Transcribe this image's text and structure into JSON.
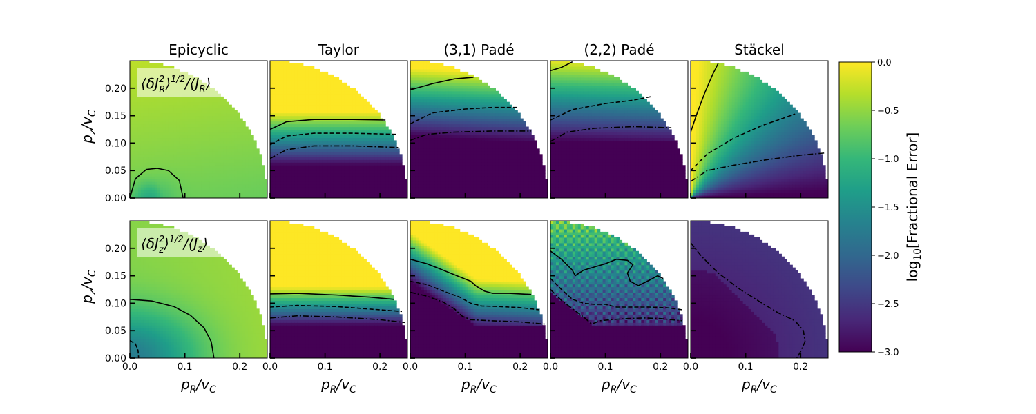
{
  "chart_data": {
    "type": "heatmap",
    "columns": [
      "Epicyclic",
      "Taylor",
      "(3,1) Padé",
      "(2,2) Padé",
      "Stäckel"
    ],
    "rows": [
      {
        "label_tex": "⟨δJ_R²⟩^{1/2}/⟨J_R⟩",
        "label_main": "⟨δJ",
        "label_sub": "R",
        "label_sup": "2",
        "label_exp": "1/2",
        "label_tail": "/⟨J",
        "label_tail_sub": "R",
        "label_close": "⟩"
      },
      {
        "label_tex": "⟨δJ_z²⟩^{1/2}/⟨J_z⟩",
        "label_main": "⟨δJ",
        "label_sub": "z",
        "label_sup": "2",
        "label_exp": "1/2",
        "label_tail": "/⟨J",
        "label_tail_sub": "z",
        "label_close": "⟩"
      }
    ],
    "xlabel": "p_R/v_C",
    "ylabel": "p_z/v_C",
    "xlabel_main": "p",
    "xlabel_sub": "R",
    "xlabel_tail": "/v",
    "xlabel_tail_sub": "C",
    "ylabel_main": "p",
    "ylabel_sub": "z",
    "ylabel_tail": "/v",
    "ylabel_tail_sub": "C",
    "xlim": [
      0.0,
      0.25
    ],
    "ylim": [
      0.0,
      0.25
    ],
    "xticks": [
      0.0,
      0.1,
      0.2
    ],
    "yticks": [
      0.0,
      0.05,
      0.1,
      0.15,
      0.2
    ],
    "xtick_labels": [
      "0.0",
      "0.1",
      "0.2"
    ],
    "ytick_labels": [
      "0.00",
      "0.05",
      "0.10",
      "0.15",
      "0.20"
    ],
    "region_radius": 0.25,
    "colorbar": {
      "label": "log10[Fractional Error]",
      "label_pre": "log",
      "label_sub": "10",
      "label_post": "[Fractional Error]",
      "range": [
        -3.0,
        0.0
      ],
      "ticks": [
        0.0,
        -0.5,
        -1.0,
        -1.5,
        -2.0,
        -2.5,
        -3.0
      ],
      "tick_labels": [
        "0.0",
        "−0.5",
        "−1.0",
        "−1.5",
        "−2.0",
        "−2.5",
        "−3.0"
      ],
      "colormap": "viridis"
    },
    "colors": {
      "viridis": [
        "#440154",
        "#482878",
        "#3e4989",
        "#31688e",
        "#26828e",
        "#1f9e89",
        "#35b779",
        "#6ece58",
        "#b5de2b",
        "#fde725"
      ]
    },
    "panels": [
      {
        "row": 0,
        "col": 0,
        "model": "epicyclic_R",
        "contours": [
          {
            "style": "solid",
            "points": [
              [
                0.0,
                0.0
              ],
              [
                0.01,
                0.035
              ],
              [
                0.03,
                0.052
              ],
              [
                0.05,
                0.054
              ],
              [
                0.07,
                0.05
              ],
              [
                0.09,
                0.032
              ],
              [
                0.097,
                0.0
              ]
            ]
          }
        ]
      },
      {
        "row": 0,
        "col": 1,
        "model": "taylor",
        "contours": [
          {
            "style": "solid",
            "points": [
              [
                0.0,
                0.125
              ],
              [
                0.03,
                0.139
              ],
              [
                0.08,
                0.143
              ],
              [
                0.15,
                0.143
              ],
              [
                0.21,
                0.142
              ]
            ]
          },
          {
            "style": "dashed",
            "points": [
              [
                0.0,
                0.097
              ],
              [
                0.03,
                0.113
              ],
              [
                0.08,
                0.118
              ],
              [
                0.15,
                0.118
              ],
              [
                0.23,
                0.116
              ]
            ]
          },
          {
            "style": "dashdot",
            "points": [
              [
                0.0,
                0.072
              ],
              [
                0.03,
                0.088
              ],
              [
                0.08,
                0.095
              ],
              [
                0.15,
                0.095
              ],
              [
                0.235,
                0.092
              ]
            ]
          }
        ]
      },
      {
        "row": 0,
        "col": 2,
        "model": "pade31",
        "contours": [
          {
            "style": "solid",
            "points": [
              [
                0.0,
                0.197
              ],
              [
                0.04,
                0.208
              ],
              [
                0.08,
                0.217
              ],
              [
                0.115,
                0.22
              ]
            ]
          },
          {
            "style": "dashed",
            "points": [
              [
                0.0,
                0.135
              ],
              [
                0.04,
                0.155
              ],
              [
                0.1,
                0.162
              ],
              [
                0.15,
                0.165
              ],
              [
                0.195,
                0.165
              ]
            ]
          },
          {
            "style": "dashdot",
            "points": [
              [
                0.0,
                0.105
              ],
              [
                0.03,
                0.116
              ],
              [
                0.08,
                0.12
              ],
              [
                0.15,
                0.122
              ],
              [
                0.22,
                0.122
              ]
            ]
          }
        ]
      },
      {
        "row": 0,
        "col": 3,
        "model": "pade22",
        "contours": [
          {
            "style": "solid",
            "points": [
              [
                0.0,
                0.232
              ],
              [
                0.02,
                0.238
              ],
              [
                0.04,
                0.248
              ]
            ]
          },
          {
            "style": "dashed",
            "points": [
              [
                0.0,
                0.142
              ],
              [
                0.04,
                0.161
              ],
              [
                0.1,
                0.172
              ],
              [
                0.15,
                0.178
              ],
              [
                0.185,
                0.185
              ]
            ]
          },
          {
            "style": "dashdot",
            "points": [
              [
                0.0,
                0.103
              ],
              [
                0.03,
                0.12
              ],
              [
                0.08,
                0.127
              ],
              [
                0.15,
                0.13
              ],
              [
                0.22,
                0.128
              ]
            ]
          }
        ]
      },
      {
        "row": 0,
        "col": 4,
        "model": "staeckel_R",
        "contours": [
          {
            "style": "solid",
            "points": [
              [
                0.0,
                0.12
              ],
              [
                0.01,
                0.15
              ],
              [
                0.025,
                0.19
              ],
              [
                0.04,
                0.225
              ],
              [
                0.05,
                0.245
              ]
            ]
          },
          {
            "style": "dashed",
            "points": [
              [
                0.0,
                0.05
              ],
              [
                0.03,
                0.08
              ],
              [
                0.08,
                0.11
              ],
              [
                0.13,
                0.132
              ],
              [
                0.19,
                0.153
              ]
            ]
          },
          {
            "style": "dashdot",
            "points": [
              [
                0.0,
                0.03
              ],
              [
                0.03,
                0.05
              ],
              [
                0.08,
                0.06
              ],
              [
                0.14,
                0.07
              ],
              [
                0.2,
                0.078
              ],
              [
                0.245,
                0.082
              ]
            ]
          }
        ]
      },
      {
        "row": 1,
        "col": 0,
        "model": "epicyclic_z",
        "contours": [
          {
            "style": "solid",
            "points": [
              [
                0.0,
                0.107
              ],
              [
                0.04,
                0.104
              ],
              [
                0.08,
                0.094
              ],
              [
                0.11,
                0.078
              ],
              [
                0.135,
                0.055
              ],
              [
                0.148,
                0.03
              ],
              [
                0.153,
                0.0
              ]
            ]
          },
          {
            "style": "dashed",
            "points": [
              [
                0.0,
                0.032
              ],
              [
                0.01,
                0.026
              ],
              [
                0.015,
                0.014
              ],
              [
                0.016,
                0.0
              ]
            ]
          }
        ]
      },
      {
        "row": 1,
        "col": 1,
        "model": "taylor",
        "contours": [
          {
            "style": "solid",
            "points": [
              [
                0.0,
                0.117
              ],
              [
                0.05,
                0.118
              ],
              [
                0.12,
                0.115
              ],
              [
                0.18,
                0.111
              ],
              [
                0.225,
                0.107
              ]
            ]
          },
          {
            "style": "dashed",
            "points": [
              [
                0.0,
                0.093
              ],
              [
                0.05,
                0.096
              ],
              [
                0.12,
                0.094
              ],
              [
                0.2,
                0.088
              ],
              [
                0.24,
                0.085
              ]
            ]
          },
          {
            "style": "dashdot",
            "points": [
              [
                0.0,
                0.073
              ],
              [
                0.05,
                0.077
              ],
              [
                0.12,
                0.075
              ],
              [
                0.2,
                0.07
              ],
              [
                0.245,
                0.065
              ]
            ]
          }
        ]
      },
      {
        "row": 1,
        "col": 2,
        "model": "pade31",
        "contours": [
          {
            "style": "solid",
            "points": [
              [
                0.0,
                0.18
              ],
              [
                0.03,
                0.172
              ],
              [
                0.06,
                0.16
              ],
              [
                0.09,
                0.148
              ],
              [
                0.11,
                0.14
              ],
              [
                0.12,
                0.131
              ],
              [
                0.135,
                0.122
              ],
              [
                0.15,
                0.118
              ],
              [
                0.18,
                0.118
              ],
              [
                0.22,
                0.116
              ]
            ]
          },
          {
            "style": "dashed",
            "points": [
              [
                0.0,
                0.14
              ],
              [
                0.03,
                0.134
              ],
              [
                0.06,
                0.122
              ],
              [
                0.09,
                0.111
              ],
              [
                0.11,
                0.1
              ],
              [
                0.13,
                0.095
              ],
              [
                0.16,
                0.094
              ],
              [
                0.2,
                0.092
              ],
              [
                0.235,
                0.088
              ]
            ]
          },
          {
            "style": "dashdot",
            "points": [
              [
                0.0,
                0.12
              ],
              [
                0.03,
                0.113
              ],
              [
                0.06,
                0.102
              ],
              [
                0.08,
                0.09
              ],
              [
                0.095,
                0.076
              ],
              [
                0.11,
                0.07
              ],
              [
                0.15,
                0.068
              ],
              [
                0.2,
                0.066
              ],
              [
                0.245,
                0.062
              ]
            ]
          }
        ]
      },
      {
        "row": 1,
        "col": 3,
        "model": "pade22",
        "contours": [
          {
            "style": "solid",
            "points": [
              [
                0.0,
                0.195
              ],
              [
                0.02,
                0.18
              ],
              [
                0.04,
                0.16
              ],
              [
                0.045,
                0.15
              ],
              [
                0.06,
                0.16
              ],
              [
                0.08,
                0.166
              ],
              [
                0.1,
                0.172
              ],
              [
                0.12,
                0.18
              ],
              [
                0.14,
                0.178
              ],
              [
                0.15,
                0.17
              ],
              [
                0.14,
                0.155
              ],
              [
                0.145,
                0.14
              ],
              [
                0.16,
                0.132
              ],
              [
                0.18,
                0.142
              ],
              [
                0.195,
                0.15
              ],
              [
                0.205,
                0.145
              ]
            ]
          },
          {
            "style": "dashed",
            "points": [
              [
                0.0,
                0.145
              ],
              [
                0.02,
                0.125
              ],
              [
                0.04,
                0.107
              ],
              [
                0.06,
                0.1
              ],
              [
                0.08,
                0.098
              ],
              [
                0.1,
                0.098
              ],
              [
                0.12,
                0.093
              ],
              [
                0.15,
                0.093
              ],
              [
                0.18,
                0.093
              ],
              [
                0.21,
                0.092
              ],
              [
                0.24,
                0.088
              ]
            ]
          },
          {
            "style": "dashdot",
            "points": [
              [
                0.0,
                0.125
              ],
              [
                0.02,
                0.105
              ],
              [
                0.04,
                0.09
              ],
              [
                0.06,
                0.075
              ],
              [
                0.075,
                0.062
              ],
              [
                0.09,
                0.068
              ],
              [
                0.11,
                0.07
              ],
              [
                0.14,
                0.072
              ],
              [
                0.17,
                0.073
              ],
              [
                0.2,
                0.072
              ],
              [
                0.24,
                0.068
              ]
            ]
          }
        ]
      },
      {
        "row": 1,
        "col": 4,
        "model": "staeckel_z",
        "contours": [
          {
            "style": "dashdot",
            "points": [
              [
                0.0,
                0.21
              ],
              [
                0.02,
                0.185
              ],
              [
                0.05,
                0.155
              ],
              [
                0.09,
                0.125
              ],
              [
                0.13,
                0.1
              ],
              [
                0.16,
                0.082
              ],
              [
                0.19,
                0.068
              ],
              [
                0.205,
                0.05
              ],
              [
                0.208,
                0.03
              ],
              [
                0.2,
                0.012
              ],
              [
                0.193,
                0.0
              ]
            ]
          }
        ]
      }
    ]
  }
}
